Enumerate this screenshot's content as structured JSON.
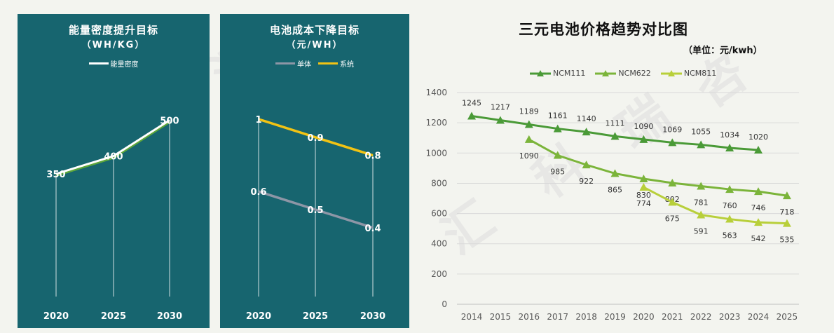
{
  "panel1": {
    "title": "能量密度提升目标",
    "subtitle": "（WH/KG）",
    "legend": "能量密度",
    "line_color": "#ffffff",
    "shadow_color": "#5da63a"
  },
  "panel2": {
    "title": "电池成本下降目标",
    "subtitle": "（元/WH）",
    "legend_a": "单体",
    "legend_b": "系统",
    "color_a": "#8d96a6",
    "color_b": "#f2c314"
  },
  "main": {
    "title": "三元电池价格趋势对比图",
    "unit": "（单位：元/kwh）"
  },
  "colors": {
    "panel_bg": "#17656f",
    "ncm111": "#4a9a37",
    "ncm622": "#7bb43a",
    "ncm811": "#b8cf3a"
  },
  "chart_data": [
    {
      "type": "line",
      "title": "能量密度提升目标",
      "subtitle": "（WH/KG）",
      "categories": [
        "2020",
        "2025",
        "2030"
      ],
      "series": [
        {
          "name": "能量密度",
          "values": [
            350,
            400,
            500
          ]
        }
      ]
    },
    {
      "type": "line",
      "title": "电池成本下降目标",
      "subtitle": "（元/WH）",
      "categories": [
        "2020",
        "2025",
        "2030"
      ],
      "series": [
        {
          "name": "单体",
          "values": [
            0.6,
            0.5,
            0.4
          ]
        },
        {
          "name": "系统",
          "values": [
            1,
            0.9,
            0.8
          ]
        }
      ]
    },
    {
      "type": "line",
      "title": "三元电池价格趋势对比图",
      "unit_note": "（单位：元/kwh）",
      "categories": [
        "2014",
        "2015",
        "2016",
        "2017",
        "2018",
        "2019",
        "2020",
        "2021",
        "2022",
        "2023",
        "2024",
        "2025"
      ],
      "ylim": [
        0,
        1400
      ],
      "yticks": [
        0,
        200,
        400,
        600,
        800,
        1000,
        1200,
        1400
      ],
      "grid": true,
      "legend_position": "top",
      "series": [
        {
          "name": "NCM111",
          "values": [
            1245,
            1217,
            1189,
            1161,
            1140,
            1111,
            1090,
            1069,
            1055,
            1034,
            1020,
            null
          ]
        },
        {
          "name": "NCM622",
          "values": [
            null,
            null,
            1090,
            985,
            922,
            865,
            830,
            802,
            781,
            760,
            746,
            718
          ]
        },
        {
          "name": "NCM811",
          "values": [
            null,
            null,
            null,
            null,
            null,
            null,
            774,
            675,
            591,
            563,
            542,
            535
          ]
        }
      ]
    }
  ]
}
